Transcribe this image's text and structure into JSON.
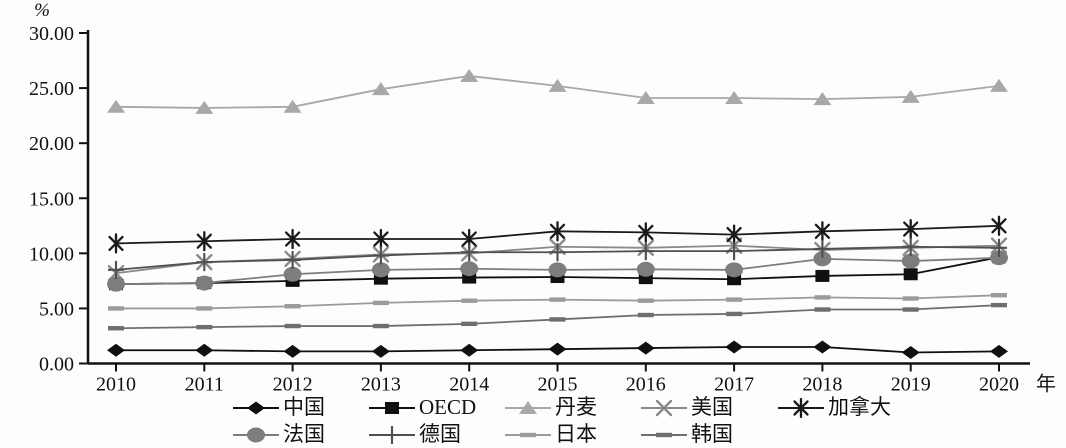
{
  "chart_data": {
    "type": "line",
    "title": "",
    "xlabel": "",
    "ylabel": "",
    "y_unit_label": "%",
    "x_unit_label": "年",
    "grid": false,
    "legend_position": "bottom",
    "ylim": [
      0,
      30
    ],
    "y_ticks": [
      "0.00",
      "5.00",
      "10.00",
      "15.00",
      "20.00",
      "25.00",
      "30.00"
    ],
    "categories": [
      "2010",
      "2011",
      "2012",
      "2013",
      "2014",
      "2015",
      "2016",
      "2017",
      "2018",
      "2019",
      "2020"
    ],
    "series": [
      {
        "id": "china",
        "name": "中国",
        "marker": "diamond",
        "color": "#101010",
        "legend_row": 0,
        "values": [
          1.2,
          1.2,
          1.1,
          1.1,
          1.2,
          1.3,
          1.4,
          1.5,
          1.5,
          1.0,
          1.1
        ]
      },
      {
        "id": "oecd",
        "name": "OECD",
        "marker": "square",
        "color": "#101010",
        "legend_row": 0,
        "values": [
          7.2,
          7.3,
          7.5,
          7.7,
          7.8,
          7.85,
          7.75,
          7.65,
          7.95,
          8.1,
          9.65
        ]
      },
      {
        "id": "denmark",
        "name": "丹麦",
        "marker": "triangle",
        "color": "#a8a8a8",
        "legend_row": 0,
        "values": [
          23.3,
          23.2,
          23.3,
          24.9,
          26.1,
          25.2,
          24.1,
          24.1,
          24.0,
          24.2,
          25.2
        ]
      },
      {
        "id": "usa",
        "name": "美国",
        "marker": "x",
        "color": "#8a8a8a",
        "legend_row": 0,
        "values": [
          8.2,
          9.2,
          9.5,
          9.9,
          10.0,
          10.6,
          10.5,
          10.7,
          10.3,
          10.5,
          10.7
        ]
      },
      {
        "id": "canada",
        "name": "加拿大",
        "marker": "star",
        "color": "#1a1a1a",
        "legend_row": 0,
        "values": [
          10.9,
          11.1,
          11.3,
          11.3,
          11.3,
          12.0,
          11.9,
          11.7,
          12.0,
          12.2,
          12.5
        ]
      },
      {
        "id": "france",
        "name": "法国",
        "marker": "circle",
        "color": "#7d7d7d",
        "legend_row": 1,
        "values": [
          7.2,
          7.3,
          8.1,
          8.5,
          8.6,
          8.5,
          8.55,
          8.5,
          9.5,
          9.3,
          9.6
        ]
      },
      {
        "id": "germany",
        "name": "德国",
        "marker": "plus",
        "color": "#4f4f4f",
        "legend_row": 1,
        "values": [
          8.5,
          9.2,
          9.4,
          9.8,
          10.1,
          10.1,
          10.2,
          10.2,
          10.4,
          10.6,
          10.5
        ]
      },
      {
        "id": "japan",
        "name": "日本",
        "marker": "dash",
        "color": "#9b9b9b",
        "legend_row": 1,
        "values": [
          5.0,
          5.0,
          5.2,
          5.5,
          5.7,
          5.8,
          5.7,
          5.8,
          6.0,
          5.9,
          6.2
        ]
      },
      {
        "id": "korea",
        "name": "韩国",
        "marker": "dash",
        "color": "#6e6e6e",
        "legend_row": 1,
        "values": [
          3.2,
          3.3,
          3.4,
          3.4,
          3.6,
          4.0,
          4.4,
          4.5,
          4.9,
          4.9,
          5.3
        ]
      }
    ]
  }
}
